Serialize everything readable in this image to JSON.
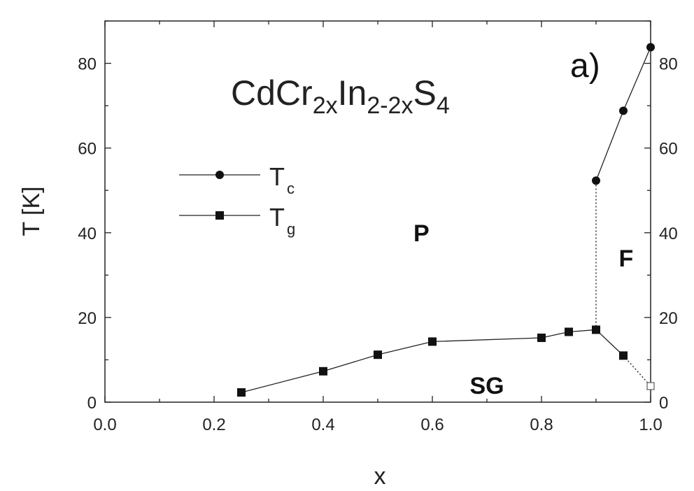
{
  "chart_data": {
    "type": "scatter",
    "title": {
      "base1": "CdCr",
      "sub1": "2x",
      "base2": "In",
      "sub2": "2-2x",
      "base3": "S",
      "sub3": "4"
    },
    "panel_label": "a)",
    "xlabel": "x",
    "ylabel": "T [K]",
    "xlim": [
      0.0,
      1.0
    ],
    "ylim": [
      0,
      90
    ],
    "x_ticks": [
      "0.0",
      "0.2",
      "0.4",
      "0.6",
      "0.8",
      "1.0"
    ],
    "y_ticks": [
      "0",
      "20",
      "40",
      "60",
      "80"
    ],
    "grid": false,
    "legend_position": "upper-left",
    "series": [
      {
        "name": "Tc",
        "legend_base": "T",
        "legend_sub": "c",
        "marker": "circle",
        "x": [
          0.9,
          0.95,
          1.0
        ],
        "y": [
          52.3,
          68.8,
          83.8
        ]
      },
      {
        "name": "Tg",
        "legend_base": "T",
        "legend_sub": "g",
        "marker": "square",
        "x": [
          0.25,
          0.4,
          0.5,
          0.6,
          0.8,
          0.85,
          0.9,
          0.95
        ],
        "y": [
          2.3,
          7.3,
          11.2,
          14.3,
          15.2,
          16.6,
          17.1,
          11.0
        ]
      }
    ],
    "extra_points": [
      {
        "x": 1.0,
        "y": 3.8,
        "marker": "open-square"
      }
    ],
    "dotted_lines": [
      {
        "x1": 0.9,
        "y1": 17.1,
        "x2": 0.9,
        "y2": 52.3
      },
      {
        "x1": 0.95,
        "y1": 11.0,
        "x2": 1.0,
        "y2": 3.8
      }
    ],
    "regions": [
      {
        "label": "P",
        "x": 0.58,
        "y": 40
      },
      {
        "label": "F",
        "x": 0.955,
        "y": 34
      },
      {
        "label": "SG",
        "x": 0.7,
        "y": 4
      }
    ]
  }
}
